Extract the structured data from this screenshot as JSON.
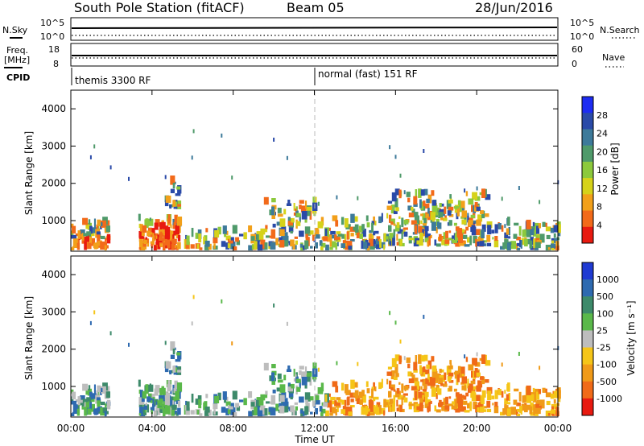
{
  "header": {
    "station": "South Pole Station (fitACF)",
    "beam": "Beam 05",
    "date": "28/Jun/2016"
  },
  "strips": {
    "nsky_label": "N.Sky",
    "nsearch_label": "N.Search",
    "freq_label_line1": "Freq.",
    "freq_label_line2": "[MHz]",
    "nave_label": "Nave",
    "cpid_label": "CPID",
    "noise_ticks_left": [
      "10^5",
      "10^0"
    ],
    "noise_ticks_right": [
      "10^5",
      "10^0"
    ],
    "freq_ticks": [
      "18",
      "8"
    ],
    "nave_ticks": [
      "60",
      "0"
    ],
    "cpid_segments": [
      {
        "start_hour": 0,
        "label": "themis 3300 RF"
      },
      {
        "start_hour": 12,
        "label": "normal (fast) 151 RF"
      }
    ]
  },
  "chart_data": [
    {
      "type": "heatmap",
      "title": "Power",
      "xlabel": "",
      "ylabel": "Slant Range [km]",
      "x_unit": "UT hours",
      "xlim": [
        0,
        24
      ],
      "ylim": [
        180,
        4500
      ],
      "yticks": [
        "1000",
        "2000",
        "3000",
        "4000"
      ],
      "colorbar_label": "Power [dB]",
      "colorbar_ticks": [
        "4",
        "8",
        "12",
        "16",
        "20",
        "24",
        "28"
      ],
      "colorbar_colors": [
        "#1d2cf2",
        "#2a4aa8",
        "#3d7a9a",
        "#4f9a6a",
        "#8cc93c",
        "#d6d21a",
        "#f2a01a",
        "#f26a1a",
        "#e81a10"
      ],
      "reference_line_hour": 12
    },
    {
      "type": "heatmap",
      "title": "Velocity",
      "xlabel": "Time UT",
      "ylabel": "Slant Range [km]",
      "x_unit": "UT hours",
      "xlim": [
        0,
        24
      ],
      "ylim": [
        180,
        4500
      ],
      "yticks": [
        "1000",
        "2000",
        "3000",
        "4000"
      ],
      "xticks": [
        "00:00",
        "04:00",
        "08:00",
        "12:00",
        "16:00",
        "20:00",
        "00:00"
      ],
      "colorbar_label": "Velocity [m s⁻¹]",
      "colorbar_ticks": [
        "1000",
        "500",
        "100",
        "25",
        "-25",
        "-100",
        "-500",
        "-1000"
      ],
      "colorbar_colors": [
        "#1f3ad2",
        "#2e6ab0",
        "#3d8a6a",
        "#5ab84a",
        "#bdbdbd",
        "#f5c518",
        "#f09a18",
        "#f06a18",
        "#e81a10"
      ],
      "reference_line_hour": 12
    }
  ]
}
